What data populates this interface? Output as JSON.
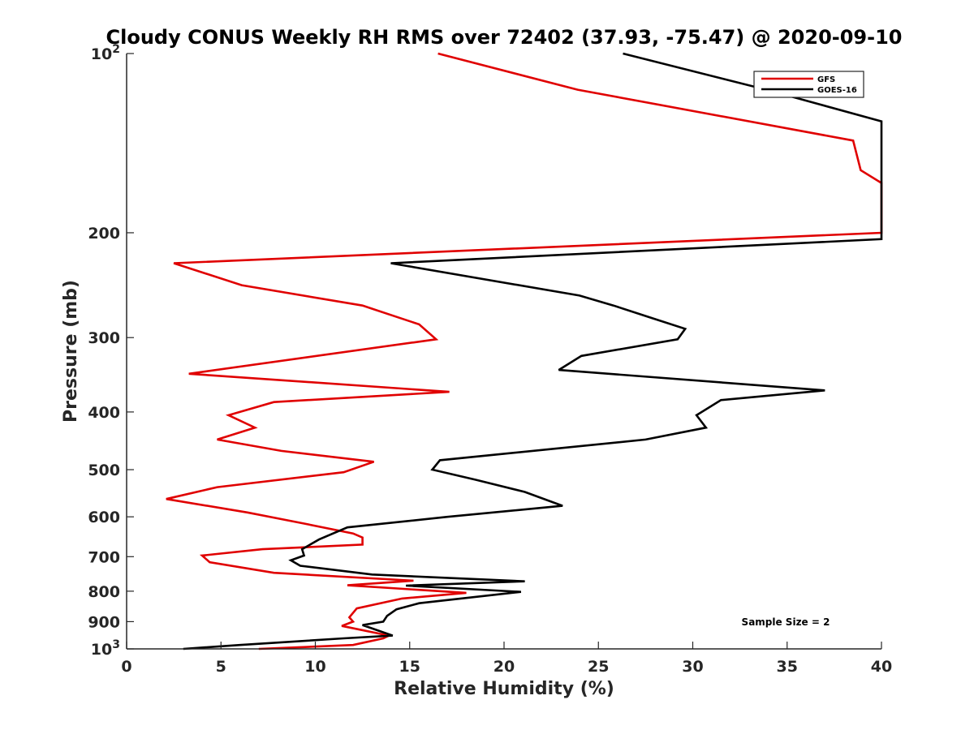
{
  "chart_data": {
    "type": "line",
    "title": "Cloudy CONUS Weekly RH RMS over 72402 (37.93, -75.47) @ 2020-09-10",
    "xlabel": "Relative Humidity (%)",
    "ylabel": "Pressure (mb)",
    "xlim": [
      0,
      40
    ],
    "ylim": [
      100,
      1000
    ],
    "y_scale": "log",
    "y_reversed": true,
    "grid": false,
    "legend_position": "top-right",
    "x_ticks": [
      0,
      5,
      10,
      15,
      20,
      25,
      30,
      35,
      40
    ],
    "y_ticks": [
      {
        "value": 100,
        "base": "10",
        "exp": "2"
      },
      {
        "value": 200,
        "label": "200"
      },
      {
        "value": 300,
        "label": "300"
      },
      {
        "value": 400,
        "label": "400"
      },
      {
        "value": 500,
        "label": "500"
      },
      {
        "value": 600,
        "label": "600"
      },
      {
        "value": 700,
        "label": "700"
      },
      {
        "value": 800,
        "label": "800"
      },
      {
        "value": 900,
        "label": "900"
      },
      {
        "value": 1000,
        "base": "10",
        "exp": "3"
      }
    ],
    "annotation": "Sample Size = 2",
    "series": [
      {
        "name": "GFS",
        "color": "#e00000",
        "points": [
          [
            16.5,
            100
          ],
          [
            23.9,
            115
          ],
          [
            38.5,
            140
          ],
          [
            38.9,
            157
          ],
          [
            40,
            165
          ],
          [
            40,
            200
          ],
          [
            2.5,
            225
          ],
          [
            6.1,
            245
          ],
          [
            12.5,
            265
          ],
          [
            15.5,
            285
          ],
          [
            16.4,
            302
          ],
          [
            3.3,
            345
          ],
          [
            17.1,
            370
          ],
          [
            7.8,
            385
          ],
          [
            5.4,
            405
          ],
          [
            6.8,
            425
          ],
          [
            4.8,
            445
          ],
          [
            8.2,
            465
          ],
          [
            13.1,
            485
          ],
          [
            11.5,
            505
          ],
          [
            4.8,
            535
          ],
          [
            2.1,
            560
          ],
          [
            6.4,
            590
          ],
          [
            9.3,
            615
          ],
          [
            12.0,
            640
          ],
          [
            12.5,
            650
          ],
          [
            12.5,
            668
          ],
          [
            7.2,
            680
          ],
          [
            4.0,
            697
          ],
          [
            4.4,
            715
          ],
          [
            7.8,
            745
          ],
          [
            15.2,
            768
          ],
          [
            11.7,
            782
          ],
          [
            18.0,
            805
          ],
          [
            14.6,
            823
          ],
          [
            12.2,
            855
          ],
          [
            11.8,
            885
          ],
          [
            12.0,
            900
          ],
          [
            11.4,
            915
          ],
          [
            13.9,
            950
          ],
          [
            13.6,
            960
          ],
          [
            12.0,
            985
          ],
          [
            7.0,
            1000
          ]
        ]
      },
      {
        "name": "GOES-16",
        "color": "#000000",
        "points": [
          [
            26.3,
            100
          ],
          [
            33.9,
            115
          ],
          [
            40,
            130
          ],
          [
            40,
            205
          ],
          [
            14.0,
            225
          ],
          [
            24.0,
            255
          ],
          [
            25.8,
            265
          ],
          [
            27.8,
            278
          ],
          [
            29.6,
            290
          ],
          [
            29.2,
            302
          ],
          [
            24.1,
            322
          ],
          [
            22.9,
            340
          ],
          [
            37.0,
            368
          ],
          [
            31.5,
            382
          ],
          [
            30.2,
            405
          ],
          [
            30.7,
            425
          ],
          [
            27.5,
            445
          ],
          [
            16.6,
            482
          ],
          [
            16.2,
            500
          ],
          [
            18.5,
            520
          ],
          [
            21.1,
            545
          ],
          [
            23.1,
            575
          ],
          [
            17.0,
            600
          ],
          [
            11.7,
            625
          ],
          [
            10.2,
            655
          ],
          [
            9.3,
            680
          ],
          [
            9.4,
            697
          ],
          [
            8.7,
            710
          ],
          [
            9.2,
            725
          ],
          [
            13.0,
            750
          ],
          [
            21.1,
            770
          ],
          [
            14.8,
            783
          ],
          [
            20.9,
            802
          ],
          [
            15.5,
            838
          ],
          [
            14.3,
            858
          ],
          [
            13.8,
            880
          ],
          [
            13.6,
            900
          ],
          [
            12.5,
            912
          ],
          [
            14.1,
            950
          ],
          [
            11.5,
            960
          ],
          [
            6.0,
            985
          ],
          [
            3.0,
            1000
          ]
        ]
      }
    ]
  }
}
